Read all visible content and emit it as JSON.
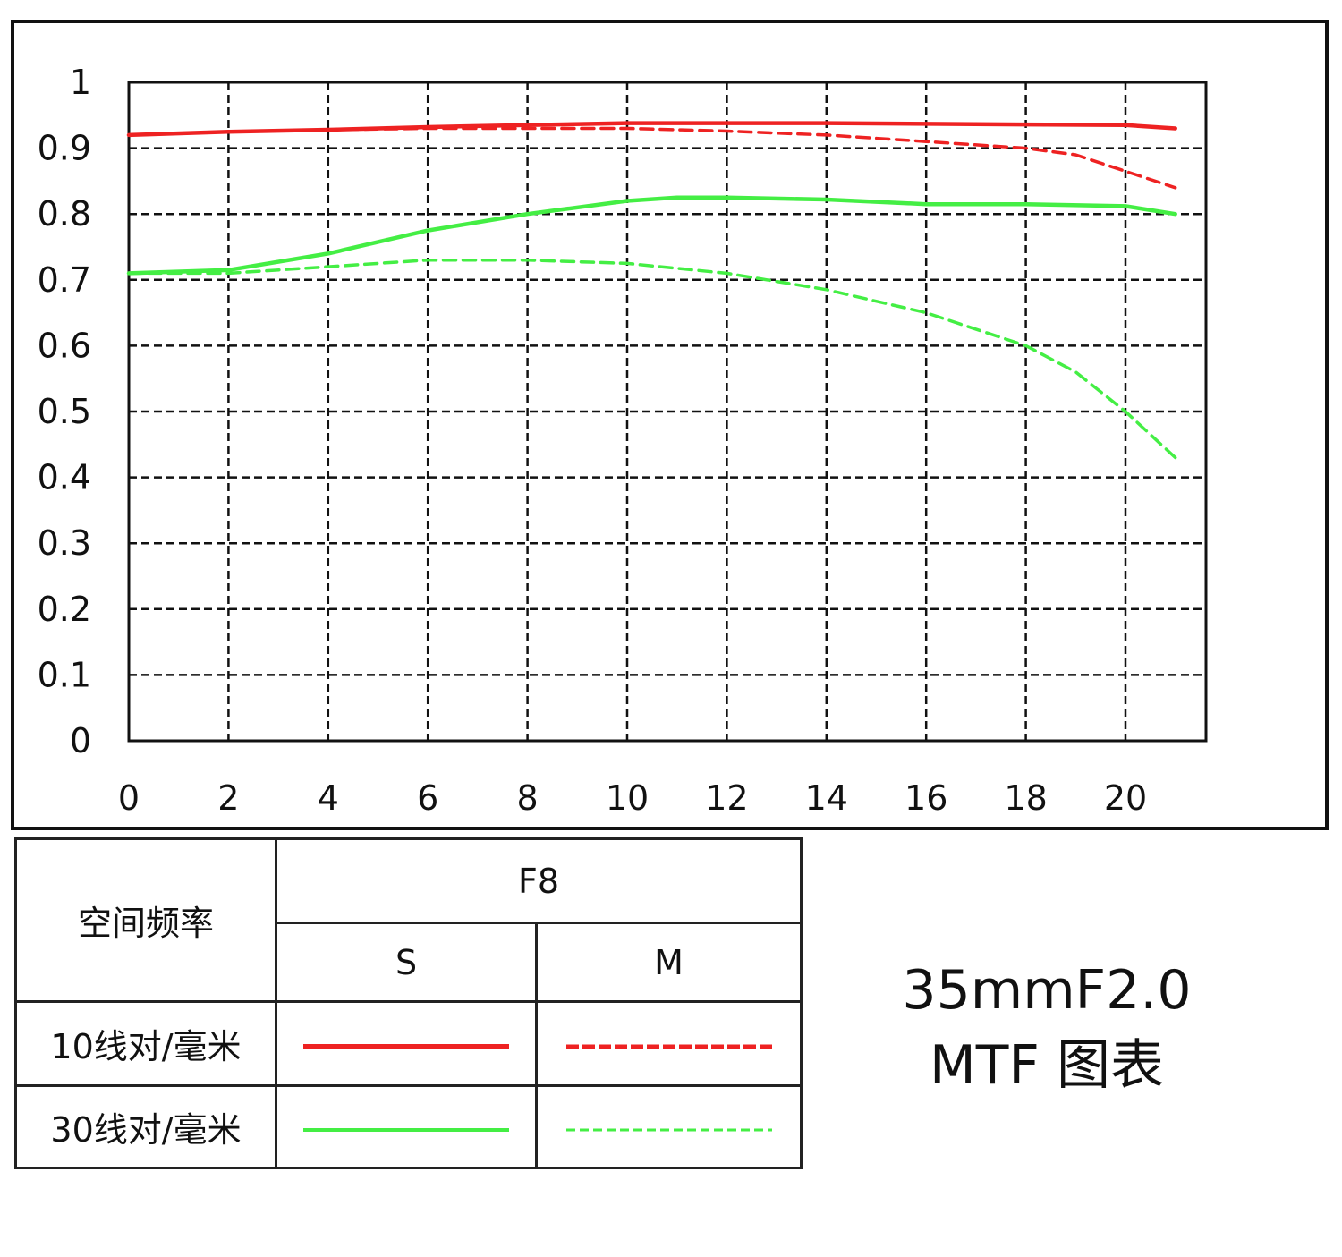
{
  "title": {
    "line1": "35mmF2.0",
    "line2": "MTF 图表"
  },
  "legend": {
    "header_left": "空间频率",
    "header_group": "F8",
    "col_s": "S",
    "col_m": "M",
    "row1_label": "10线对/毫米",
    "row2_label": "30线对/毫米"
  },
  "colors": {
    "red": "#ee2222",
    "green": "#44ee44"
  },
  "chart_data": {
    "type": "line",
    "x_ticks": [
      0,
      2,
      4,
      6,
      8,
      10,
      12,
      14,
      16,
      18,
      20
    ],
    "y_ticks": [
      "0",
      "0.1",
      "0.2",
      "0.3",
      "0.4",
      "0.5",
      "0.6",
      "0.7",
      "0.8",
      "0.9",
      "1"
    ],
    "xlim": [
      0,
      22
    ],
    "ylim": [
      0,
      1
    ],
    "grid": true,
    "series": [
      {
        "name": "10线对/毫米 S",
        "color": "#ee2222",
        "style": "solid",
        "x": [
          0,
          2,
          4,
          6,
          8,
          10,
          12,
          14,
          16,
          18,
          20,
          21
        ],
        "y": [
          0.92,
          0.925,
          0.928,
          0.932,
          0.935,
          0.938,
          0.938,
          0.938,
          0.937,
          0.936,
          0.935,
          0.93
        ]
      },
      {
        "name": "10线对/毫米 M",
        "color": "#ee2222",
        "style": "dashed",
        "x": [
          0,
          2,
          4,
          6,
          8,
          10,
          12,
          14,
          16,
          18,
          19,
          20,
          21
        ],
        "y": [
          0.92,
          0.925,
          0.928,
          0.93,
          0.93,
          0.93,
          0.926,
          0.92,
          0.91,
          0.9,
          0.89,
          0.865,
          0.84
        ]
      },
      {
        "name": "30线对/毫米 S",
        "color": "#44ee44",
        "style": "solid",
        "x": [
          0,
          2,
          4,
          6,
          8,
          10,
          11,
          12,
          14,
          16,
          18,
          20,
          21
        ],
        "y": [
          0.71,
          0.715,
          0.74,
          0.775,
          0.8,
          0.82,
          0.825,
          0.825,
          0.822,
          0.815,
          0.815,
          0.812,
          0.8
        ]
      },
      {
        "name": "30线对/毫米 M",
        "color": "#44ee44",
        "style": "dashed",
        "x": [
          0,
          2,
          4,
          6,
          7,
          8,
          10,
          12,
          14,
          16,
          18,
          19,
          20,
          21
        ],
        "y": [
          0.71,
          0.71,
          0.72,
          0.73,
          0.73,
          0.73,
          0.725,
          0.71,
          0.685,
          0.65,
          0.6,
          0.56,
          0.5,
          0.43
        ]
      }
    ]
  }
}
